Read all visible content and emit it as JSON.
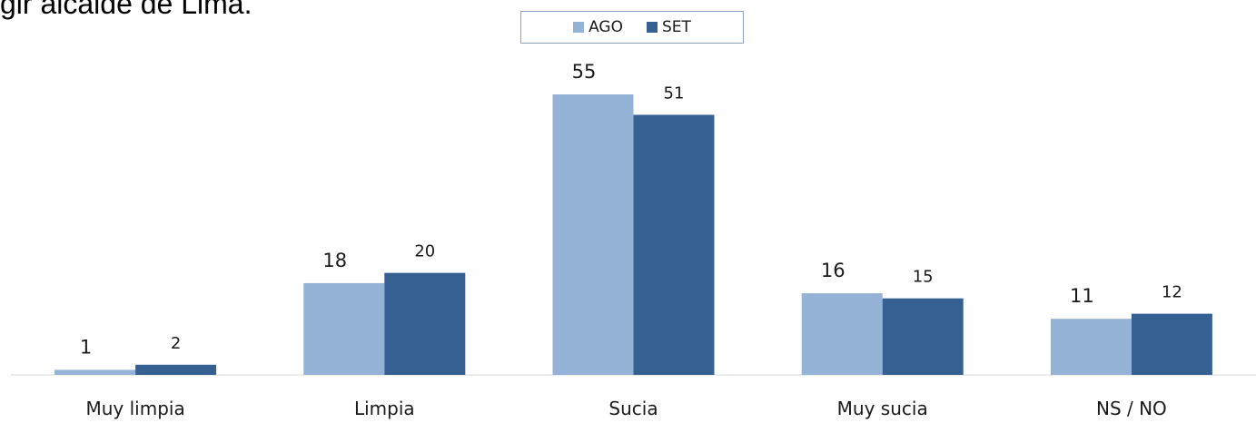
{
  "header": {
    "text": "gir alcalde de Lima."
  },
  "chart_data": {
    "type": "bar",
    "title": "",
    "xlabel": "",
    "ylabel": "",
    "categories": [
      "Muy limpia",
      "Limpia",
      "Sucia",
      "Muy sucia",
      "NS / NO"
    ],
    "series": [
      {
        "name": "AGO",
        "values": [
          1,
          18,
          55,
          16,
          11
        ],
        "color": "#95b3d7"
      },
      {
        "name": "SET",
        "values": [
          2,
          20,
          51,
          15,
          12
        ],
        "color": "#376092"
      }
    ],
    "ylim": [
      0,
      55
    ],
    "grid": false,
    "legend_position": "top-center"
  }
}
